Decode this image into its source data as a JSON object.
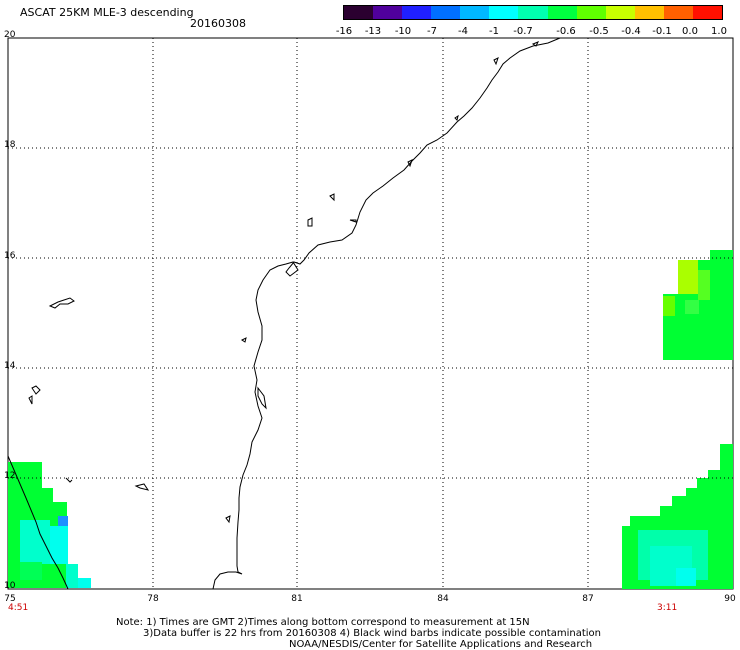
{
  "header": {
    "title": "ASCAT 25KM MLE-3 descending",
    "date": "20160308"
  },
  "colorbar": {
    "labels": [
      "-16",
      "-13",
      "-10",
      "-7",
      "-4",
      "-1",
      "-0.7",
      "-0.6",
      "-0.5",
      "-0.4",
      "-0.1",
      "0.0",
      "1.0"
    ],
    "colors": [
      "#2b0030",
      "#50009c",
      "#2020ff",
      "#0070ff",
      "#00b8ff",
      "#00ffff",
      "#00ffb0",
      "#00ff40",
      "#60ff00",
      "#c8ff00",
      "#ffc000",
      "#ff6000",
      "#ff1000"
    ]
  },
  "axes": {
    "lat_labels": [
      "20",
      "18",
      "16",
      "14",
      "12",
      "10"
    ],
    "lon_labels": [
      "75",
      "78",
      "81",
      "84",
      "87",
      "90"
    ]
  },
  "times": {
    "left": "4:51",
    "right": "3:11"
  },
  "notes": [
    "Note: 1) Times are GMT 2)Times along bottom correspond to measurement at 15N",
    "3)Data buffer is 22 hrs from 20160308 4) Black wind barbs indicate possible contamination",
    "NOAA/NESDIS/Center for Satellite Applications and Research"
  ],
  "legend_colors": {
    "green": "#00ff33",
    "cyan": "#00ffcc",
    "lime": "#aaff00",
    "blue": "#1e90ff"
  }
}
